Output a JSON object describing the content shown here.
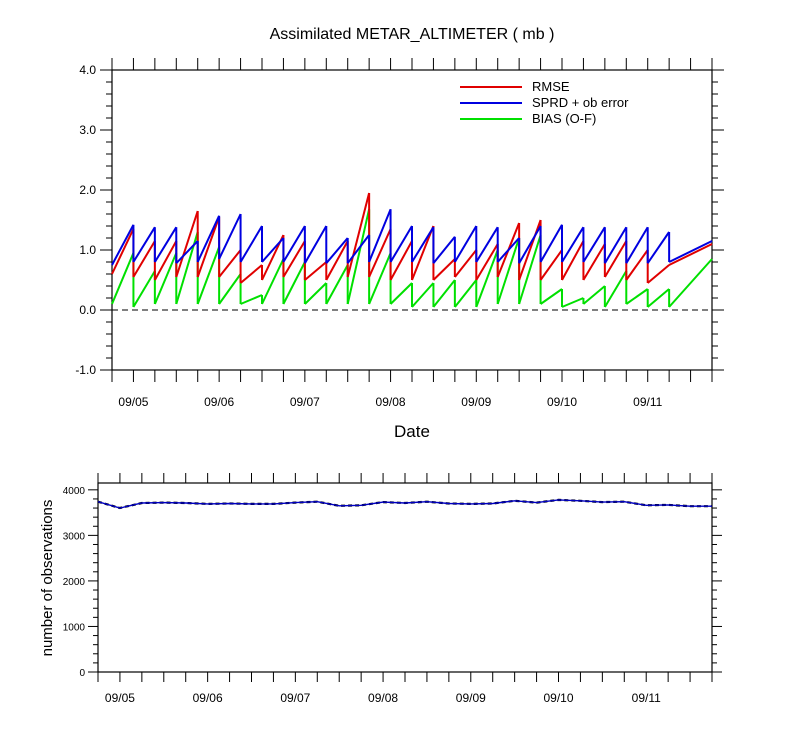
{
  "chart_data": [
    {
      "type": "line",
      "title": "Assimilated METAR_ALTIMETER ( mb )",
      "xlabel": "Date",
      "ylabel": "",
      "ylim": [
        -1.0,
        4.0
      ],
      "yticks": [
        "-1.0",
        "0.0",
        "1.0",
        "2.0",
        "3.0",
        "4.0"
      ],
      "xlim": [
        0,
        28
      ],
      "xticks": [
        {
          "x": 1,
          "label": "09/05"
        },
        {
          "x": 5,
          "label": "09/06"
        },
        {
          "x": 9,
          "label": "09/07"
        },
        {
          "x": 13,
          "label": "09/08"
        },
        {
          "x": 17,
          "label": "09/09"
        },
        {
          "x": 21,
          "label": "09/10"
        },
        {
          "x": 25,
          "label": "09/11"
        }
      ],
      "reference_line": {
        "y": 0.0,
        "style": "dashed",
        "color": "#000000"
      },
      "legend_position": "top-right",
      "series": [
        {
          "name": "RMSE",
          "color": "#e00000",
          "segments": [
            [
              [
                0,
                0.6
              ],
              [
                1,
                1.35
              ]
            ],
            [
              [
                1,
                0.55
              ],
              [
                2,
                1.15
              ]
            ],
            [
              [
                2,
                0.5
              ],
              [
                3,
                1.15
              ]
            ],
            [
              [
                3,
                0.55
              ],
              [
                4,
                1.65
              ]
            ],
            [
              [
                4,
                0.55
              ],
              [
                5,
                1.55
              ]
            ],
            [
              [
                5,
                0.55
              ],
              [
                6,
                1.0
              ]
            ],
            [
              [
                6,
                0.45
              ],
              [
                7,
                0.75
              ]
            ],
            [
              [
                7,
                0.5
              ],
              [
                8,
                1.25
              ]
            ],
            [
              [
                8,
                0.55
              ],
              [
                9,
                1.15
              ]
            ],
            [
              [
                9,
                0.5
              ],
              [
                10,
                0.8
              ]
            ],
            [
              [
                10,
                0.5
              ],
              [
                11,
                1.15
              ]
            ],
            [
              [
                11,
                0.55
              ],
              [
                12,
                1.95
              ]
            ],
            [
              [
                12,
                0.55
              ],
              [
                13,
                1.35
              ]
            ],
            [
              [
                13,
                0.5
              ],
              [
                14,
                1.15
              ]
            ],
            [
              [
                14,
                0.5
              ],
              [
                15,
                1.4
              ]
            ],
            [
              [
                15,
                0.5
              ],
              [
                16,
                0.85
              ]
            ],
            [
              [
                16,
                0.55
              ],
              [
                17,
                1.0
              ]
            ],
            [
              [
                17,
                0.5
              ],
              [
                18,
                1.1
              ]
            ],
            [
              [
                18,
                0.55
              ],
              [
                19,
                1.45
              ]
            ],
            [
              [
                19,
                0.5
              ],
              [
                20,
                1.5
              ]
            ],
            [
              [
                20,
                0.5
              ],
              [
                21,
                1.0
              ]
            ],
            [
              [
                21,
                0.5
              ],
              [
                22,
                1.15
              ]
            ],
            [
              [
                22,
                0.5
              ],
              [
                23,
                1.1
              ]
            ],
            [
              [
                23,
                0.55
              ],
              [
                24,
                1.15
              ]
            ],
            [
              [
                24,
                0.5
              ],
              [
                25,
                1.0
              ]
            ],
            [
              [
                25,
                0.45
              ],
              [
                26,
                0.75
              ]
            ],
            [
              [
                26,
                0.75
              ],
              [
                28,
                1.1
              ]
            ]
          ]
        },
        {
          "name": "SPRD + ob error",
          "color": "#0000e0",
          "segments": [
            [
              [
                0,
                0.75
              ],
              [
                1,
                1.42
              ]
            ],
            [
              [
                1,
                0.8
              ],
              [
                2,
                1.38
              ]
            ],
            [
              [
                2,
                0.8
              ],
              [
                3,
                1.38
              ]
            ],
            [
              [
                3,
                0.78
              ],
              [
                4,
                1.15
              ]
            ],
            [
              [
                4,
                0.8
              ],
              [
                5,
                1.57
              ]
            ],
            [
              [
                5,
                0.85
              ],
              [
                6,
                1.6
              ]
            ],
            [
              [
                6,
                0.8
              ],
              [
                7,
                1.4
              ]
            ],
            [
              [
                7,
                0.8
              ],
              [
                8,
                1.2
              ]
            ],
            [
              [
                8,
                0.8
              ],
              [
                9,
                1.4
              ]
            ],
            [
              [
                9,
                0.78
              ],
              [
                10,
                1.4
              ]
            ],
            [
              [
                10,
                0.78
              ],
              [
                11,
                1.2
              ]
            ],
            [
              [
                11,
                0.78
              ],
              [
                12,
                1.25
              ]
            ],
            [
              [
                12,
                0.8
              ],
              [
                13,
                1.68
              ]
            ],
            [
              [
                13,
                0.8
              ],
              [
                14,
                1.4
              ]
            ],
            [
              [
                14,
                0.8
              ],
              [
                15,
                1.38
              ]
            ],
            [
              [
                15,
                0.78
              ],
              [
                16,
                1.22
              ]
            ],
            [
              [
                16,
                0.8
              ],
              [
                17,
                1.4
              ]
            ],
            [
              [
                17,
                0.8
              ],
              [
                18,
                1.38
              ]
            ],
            [
              [
                18,
                0.8
              ],
              [
                19,
                1.2
              ]
            ],
            [
              [
                19,
                0.78
              ],
              [
                20,
                1.4
              ]
            ],
            [
              [
                20,
                0.8
              ],
              [
                21,
                1.42
              ]
            ],
            [
              [
                21,
                0.8
              ],
              [
                22,
                1.38
              ]
            ],
            [
              [
                22,
                0.8
              ],
              [
                23,
                1.38
              ]
            ],
            [
              [
                23,
                0.78
              ],
              [
                24,
                1.38
              ]
            ],
            [
              [
                24,
                0.78
              ],
              [
                25,
                1.38
              ]
            ],
            [
              [
                25,
                0.78
              ],
              [
                26,
                1.3
              ]
            ],
            [
              [
                26,
                0.8
              ],
              [
                28,
                1.15
              ]
            ]
          ]
        },
        {
          "name": "BIAS (O-F)",
          "color": "#00e000",
          "segments": [
            [
              [
                0,
                0.1
              ],
              [
                1,
                0.95
              ]
            ],
            [
              [
                1,
                0.05
              ],
              [
                2,
                0.65
              ]
            ],
            [
              [
                2,
                0.1
              ],
              [
                3,
                0.95
              ]
            ],
            [
              [
                3,
                0.1
              ],
              [
                4,
                1.3
              ]
            ],
            [
              [
                4,
                0.1
              ],
              [
                5,
                1.05
              ]
            ],
            [
              [
                5,
                0.1
              ],
              [
                6,
                0.6
              ]
            ],
            [
              [
                6,
                0.1
              ],
              [
                7,
                0.25
              ]
            ],
            [
              [
                7,
                0.1
              ],
              [
                8,
                0.85
              ]
            ],
            [
              [
                8,
                0.1
              ],
              [
                9,
                0.8
              ]
            ],
            [
              [
                9,
                0.1
              ],
              [
                10,
                0.45
              ]
            ],
            [
              [
                10,
                0.1
              ],
              [
                11,
                0.75
              ]
            ],
            [
              [
                11,
                0.1
              ],
              [
                12,
                1.68
              ]
            ],
            [
              [
                12,
                0.1
              ],
              [
                13,
                0.95
              ]
            ],
            [
              [
                13,
                0.1
              ],
              [
                14,
                0.45
              ]
            ],
            [
              [
                14,
                0.05
              ],
              [
                15,
                0.45
              ]
            ],
            [
              [
                15,
                0.05
              ],
              [
                16,
                0.5
              ]
            ],
            [
              [
                16,
                0.05
              ],
              [
                17,
                0.5
              ]
            ],
            [
              [
                17,
                0.05
              ],
              [
                18,
                1.0
              ]
            ],
            [
              [
                18,
                0.1
              ],
              [
                19,
                1.2
              ]
            ],
            [
              [
                19,
                0.1
              ],
              [
                20,
                1.25
              ]
            ],
            [
              [
                20,
                0.1
              ],
              [
                21,
                0.35
              ]
            ],
            [
              [
                21,
                0.05
              ],
              [
                22,
                0.2
              ]
            ],
            [
              [
                22,
                0.1
              ],
              [
                23,
                0.4
              ]
            ],
            [
              [
                23,
                0.05
              ],
              [
                24,
                0.65
              ]
            ],
            [
              [
                24,
                0.1
              ],
              [
                25,
                0.35
              ]
            ],
            [
              [
                25,
                0.05
              ],
              [
                26,
                0.35
              ]
            ],
            [
              [
                26,
                0.05
              ],
              [
                28,
                0.85
              ]
            ]
          ]
        }
      ]
    },
    {
      "type": "line",
      "title": "",
      "xlabel": "",
      "ylabel": "number of observations",
      "ylim": [
        0,
        4150
      ],
      "yticks": [
        "0",
        "1000",
        "2000",
        "3000",
        "4000"
      ],
      "xlim": [
        0,
        28
      ],
      "xticks": [
        {
          "x": 1,
          "label": "09/05"
        },
        {
          "x": 5,
          "label": "09/06"
        },
        {
          "x": 9,
          "label": "09/07"
        },
        {
          "x": 13,
          "label": "09/08"
        },
        {
          "x": 17,
          "label": "09/09"
        },
        {
          "x": 21,
          "label": "09/10"
        },
        {
          "x": 25,
          "label": "09/11"
        }
      ],
      "series": [
        {
          "color": "#0000c0",
          "x": [
            0,
            1,
            2,
            3,
            4,
            5,
            6,
            7,
            8,
            9,
            10,
            11,
            12,
            13,
            14,
            15,
            16,
            17,
            18,
            19,
            20,
            21,
            22,
            23,
            24,
            25,
            26,
            27,
            28
          ],
          "y": [
            3740,
            3600,
            3710,
            3720,
            3710,
            3690,
            3700,
            3690,
            3690,
            3720,
            3740,
            3650,
            3660,
            3730,
            3710,
            3740,
            3700,
            3690,
            3700,
            3760,
            3720,
            3780,
            3760,
            3730,
            3740,
            3660,
            3670,
            3640,
            3640
          ]
        }
      ]
    }
  ]
}
